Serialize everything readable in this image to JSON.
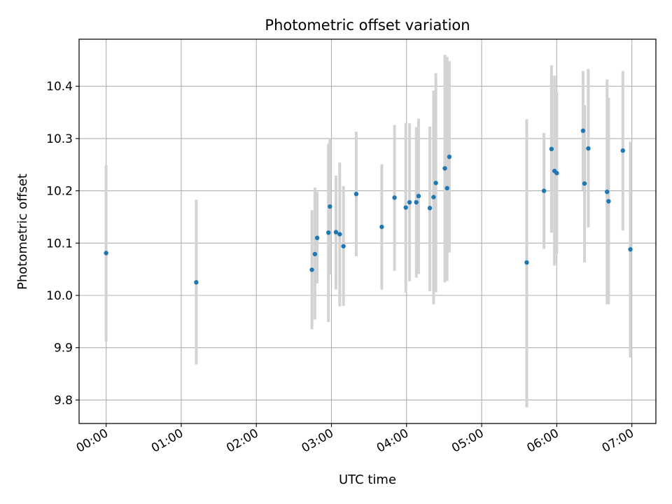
{
  "chart_data": {
    "type": "scatter",
    "title": "Photometric offset variation",
    "xlabel": "UTC time",
    "ylabel": "Photometric offset",
    "x_unit": "hours UTC",
    "xlim": [
      -0.36,
      7.32
    ],
    "ylim": [
      9.755,
      10.49
    ],
    "x_ticks": [
      {
        "value": 0,
        "label": "00:00"
      },
      {
        "value": 1,
        "label": "01:00"
      },
      {
        "value": 2,
        "label": "02:00"
      },
      {
        "value": 3,
        "label": "03:00"
      },
      {
        "value": 4,
        "label": "04:00"
      },
      {
        "value": 5,
        "label": "05:00"
      },
      {
        "value": 6,
        "label": "06:00"
      },
      {
        "value": 7,
        "label": "07:00"
      }
    ],
    "y_ticks": [
      {
        "value": 9.8,
        "label": "9.8"
      },
      {
        "value": 9.9,
        "label": "9.9"
      },
      {
        "value": 10.0,
        "label": "10.0"
      },
      {
        "value": 10.1,
        "label": "10.1"
      },
      {
        "value": 10.2,
        "label": "10.2"
      },
      {
        "value": 10.3,
        "label": "10.3"
      },
      {
        "value": 10.4,
        "label": "10.4"
      }
    ],
    "grid": true,
    "point_color": "#1f77b4",
    "errorbar_color": "#d3d3d3",
    "points": [
      {
        "x": 0.0,
        "y": 10.081,
        "lo": 9.912,
        "hi": 10.249
      },
      {
        "x": 1.2,
        "y": 10.025,
        "lo": 9.868,
        "hi": 10.183
      },
      {
        "x": 2.74,
        "y": 10.049,
        "lo": 9.935,
        "hi": 10.163
      },
      {
        "x": 2.78,
        "y": 10.079,
        "lo": 9.954,
        "hi": 10.206
      },
      {
        "x": 2.81,
        "y": 10.11,
        "lo": 10.023,
        "hi": 10.198
      },
      {
        "x": 2.96,
        "y": 10.12,
        "lo": 9.949,
        "hi": 10.29
      },
      {
        "x": 2.98,
        "y": 10.17,
        "lo": 10.04,
        "hi": 10.301
      },
      {
        "x": 3.06,
        "y": 10.121,
        "lo": 10.011,
        "hi": 10.229
      },
      {
        "x": 3.11,
        "y": 10.117,
        "lo": 9.979,
        "hi": 10.254
      },
      {
        "x": 3.16,
        "y": 10.094,
        "lo": 9.98,
        "hi": 10.209
      },
      {
        "x": 3.33,
        "y": 10.194,
        "lo": 10.075,
        "hi": 10.313
      },
      {
        "x": 3.67,
        "y": 10.131,
        "lo": 10.011,
        "hi": 10.251
      },
      {
        "x": 3.84,
        "y": 10.187,
        "lo": 10.047,
        "hi": 10.326
      },
      {
        "x": 3.99,
        "y": 10.168,
        "lo": 10.005,
        "hi": 10.33
      },
      {
        "x": 4.04,
        "y": 10.178,
        "lo": 10.027,
        "hi": 10.329
      },
      {
        "x": 4.13,
        "y": 10.178,
        "lo": 10.034,
        "hi": 10.322
      },
      {
        "x": 4.16,
        "y": 10.19,
        "lo": 10.041,
        "hi": 10.338
      },
      {
        "x": 4.31,
        "y": 10.167,
        "lo": 10.008,
        "hi": 10.323
      },
      {
        "x": 4.36,
        "y": 10.188,
        "lo": 9.983,
        "hi": 10.392
      },
      {
        "x": 4.39,
        "y": 10.215,
        "lo": 10.006,
        "hi": 10.425
      },
      {
        "x": 4.51,
        "y": 10.243,
        "lo": 10.025,
        "hi": 10.46
      },
      {
        "x": 4.54,
        "y": 10.205,
        "lo": 10.028,
        "hi": 10.456
      },
      {
        "x": 4.57,
        "y": 10.265,
        "lo": 10.082,
        "hi": 10.448
      },
      {
        "x": 5.6,
        "y": 10.063,
        "lo": 9.786,
        "hi": 10.337
      },
      {
        "x": 5.83,
        "y": 10.2,
        "lo": 10.089,
        "hi": 10.311
      },
      {
        "x": 5.93,
        "y": 10.28,
        "lo": 10.12,
        "hi": 10.44
      },
      {
        "x": 5.97,
        "y": 10.238,
        "lo": 10.057,
        "hi": 10.42
      },
      {
        "x": 6.0,
        "y": 10.234,
        "lo": 10.079,
        "hi": 10.389
      },
      {
        "x": 6.35,
        "y": 10.315,
        "lo": 10.201,
        "hi": 10.429
      },
      {
        "x": 6.37,
        "y": 10.214,
        "lo": 10.063,
        "hi": 10.364
      },
      {
        "x": 6.42,
        "y": 10.281,
        "lo": 10.13,
        "hi": 10.433
      },
      {
        "x": 6.67,
        "y": 10.198,
        "lo": 9.983,
        "hi": 10.413
      },
      {
        "x": 6.69,
        "y": 10.18,
        "lo": 9.983,
        "hi": 10.378
      },
      {
        "x": 6.88,
        "y": 10.277,
        "lo": 10.124,
        "hi": 10.429
      },
      {
        "x": 6.98,
        "y": 10.088,
        "lo": 9.881,
        "hi": 10.294
      }
    ]
  }
}
